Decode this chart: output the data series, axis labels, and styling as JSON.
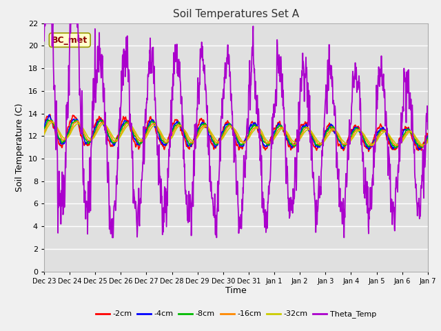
{
  "title": "Soil Temperatures Set A",
  "xlabel": "Time",
  "ylabel": "Soil Temperature (C)",
  "ylim": [
    0,
    22
  ],
  "yticks": [
    0,
    2,
    4,
    6,
    8,
    10,
    12,
    14,
    16,
    18,
    20,
    22
  ],
  "annotation": "BC_met",
  "series_labels": [
    "-2cm",
    "-4cm",
    "-8cm",
    "-16cm",
    "-32cm",
    "Theta_Temp"
  ],
  "series_colors": [
    "#ff0000",
    "#0000ff",
    "#00bb00",
    "#ff8800",
    "#cccc00",
    "#aa00cc"
  ],
  "xtick_labels": [
    "Dec 23",
    "Dec 24",
    "Dec 25",
    "Dec 26",
    "Dec 27",
    "Dec 28",
    "Dec 29",
    "Dec 30",
    "Dec 31",
    "Jan 1",
    "Jan 2",
    "Jan 3",
    "Jan 4",
    "Jan 5",
    "Jan 6",
    "Jan 7"
  ],
  "fig_facecolor": "#f0f0f0",
  "ax_facecolor": "#e0e0e0",
  "grid_color": "#ffffff",
  "title_fontsize": 11,
  "axis_fontsize": 9,
  "tick_fontsize": 8
}
